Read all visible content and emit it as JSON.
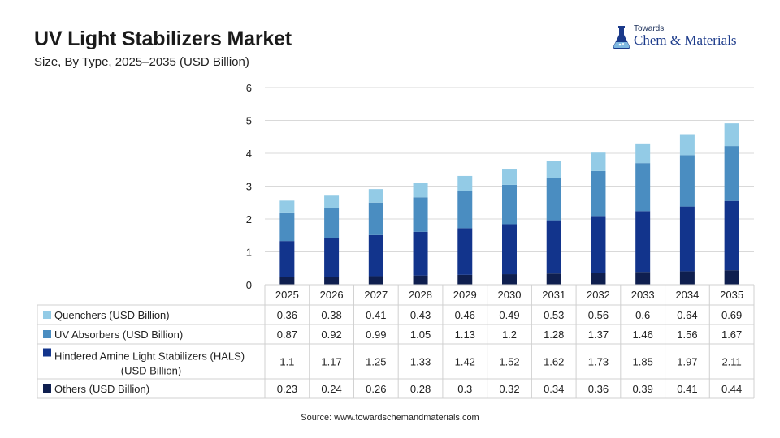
{
  "header": {
    "title": "UV Light Stabilizers Market",
    "subtitle": "Size, By Type, 2025–2035 (USD Billion)"
  },
  "logo": {
    "top_text": "Towards",
    "main_text": "Chem & Materials",
    "icon": "flask-logo-icon"
  },
  "source": "Source: www.towardschemandmaterials.com",
  "chart_data": {
    "type": "bar",
    "stacked": true,
    "title": "UV Light Stabilizers Market",
    "subtitle": "Size, By Type, 2025–2035 (USD Billion)",
    "categories": [
      "2025",
      "2026",
      "2027",
      "2028",
      "2029",
      "2030",
      "2031",
      "2032",
      "2033",
      "2034",
      "2035"
    ],
    "ylim": [
      0,
      6
    ],
    "yticks": [
      "0",
      "1",
      "2",
      "3",
      "4",
      "5",
      "6"
    ],
    "grid": true,
    "legend": "data-table-left",
    "series": [
      {
        "name": "Others (USD Billion)",
        "color": "#0f1f4f",
        "values": [
          0.23,
          0.24,
          0.26,
          0.28,
          0.3,
          0.32,
          0.34,
          0.36,
          0.39,
          0.41,
          0.44
        ]
      },
      {
        "name": "Hindered Amine Light Stabilizers (HALS) (USD Billion)",
        "color": "#12348c",
        "values": [
          1.1,
          1.17,
          1.25,
          1.33,
          1.42,
          1.52,
          1.62,
          1.73,
          1.85,
          1.97,
          2.11
        ]
      },
      {
        "name": "UV Absorbers (USD Billion)",
        "color": "#4a8dc1",
        "values": [
          0.87,
          0.92,
          0.99,
          1.05,
          1.13,
          1.2,
          1.28,
          1.37,
          1.46,
          1.56,
          1.67
        ]
      },
      {
        "name": "Quenchers (USD Billion)",
        "color": "#93cbe6",
        "values": [
          0.36,
          0.38,
          0.41,
          0.43,
          0.46,
          0.49,
          0.53,
          0.56,
          0.6,
          0.64,
          0.69
        ]
      }
    ],
    "table_labels": {
      "Quenchers (USD Billion)": [
        "0.36",
        "0.38",
        "0.41",
        "0.43",
        "0.46",
        "0.49",
        "0.53",
        "0.56",
        "0.6",
        "0.64",
        "0.69"
      ],
      "UV Absorbers (USD Billion)": [
        "0.87",
        "0.92",
        "0.99",
        "1.05",
        "1.13",
        "1.2",
        "1.28",
        "1.37",
        "1.46",
        "1.56",
        "1.67"
      ],
      "Hindered Amine Light Stabilizers (HALS) (USD Billion)": [
        "1.1",
        "1.17",
        "1.25",
        "1.33",
        "1.42",
        "1.52",
        "1.62",
        "1.73",
        "1.85",
        "1.97",
        "2.11"
      ],
      "Others (USD Billion)": [
        "0.23",
        "0.24",
        "0.26",
        "0.28",
        "0.3",
        "0.32",
        "0.34",
        "0.36",
        "0.39",
        "0.41",
        "0.44"
      ]
    }
  }
}
